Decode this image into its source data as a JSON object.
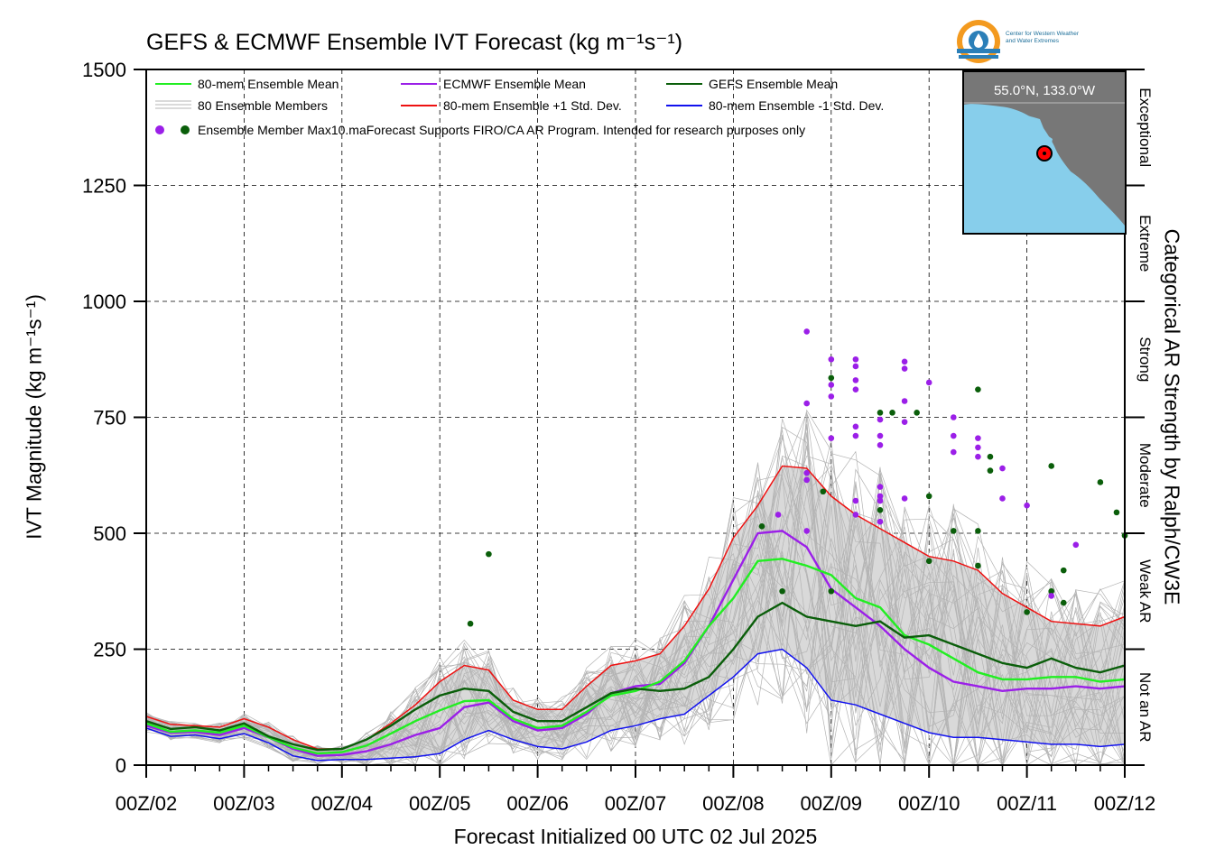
{
  "title": "GEFS & ECMWF Ensemble IVT Forecast (kg m⁻¹s⁻¹)",
  "ylabel": "IVT Magnitude (kg m⁻¹s⁻¹)",
  "xlabel": "Forecast Initialized 00 UTC 02 Jul 2025",
  "right_label": "Categorical AR Strength by Ralph/CW3E",
  "logo": {
    "text_line1": "Center for Western Weather",
    "text_line2": "and Water Extremes"
  },
  "inset_map": {
    "label": "55.0°N, 133.0°W",
    "land_color": "#777777",
    "ocean_color": "#87ceeb",
    "marker_color": "#ff0000"
  },
  "legend": {
    "mean80": "80-mem Ensemble Mean",
    "members": "80 Ensemble Members",
    "ecmwf_mean": "ECMWF Ensemble Mean",
    "plus_std": "80-mem Ensemble +1 Std. Dev.",
    "gefs_mean": "GEFS Ensemble Mean",
    "minus_std": "80-mem Ensemble -1 Std. Dev.",
    "max_label": "Ensemble Member Max",
    "note": "10.maForecast Supports FIRO/CA AR Program. Intended for research purposes only"
  },
  "colors": {
    "mean80": "#22ee22",
    "ecmwf": "#9b1fe8",
    "gefs": "#0a5e0a",
    "plus_std": "#ee1111",
    "minus_std": "#1111ee",
    "members": "#b4b4b4",
    "fill": "#d9d9d9"
  },
  "chart_data": {
    "type": "line",
    "ylim": [
      0,
      1500
    ],
    "yticks": [
      0,
      250,
      500,
      750,
      1000,
      1250,
      1500
    ],
    "xlim": [
      0,
      240
    ],
    "x_unit": "forecast hours from 00 UTC 02 Jul 2025",
    "xticks": [
      {
        "x": 0,
        "label": "00Z/02"
      },
      {
        "x": 24,
        "label": "00Z/03"
      },
      {
        "x": 48,
        "label": "00Z/04"
      },
      {
        "x": 72,
        "label": "00Z/05"
      },
      {
        "x": 96,
        "label": "00Z/06"
      },
      {
        "x": 120,
        "label": "00Z/07"
      },
      {
        "x": 144,
        "label": "00Z/08"
      },
      {
        "x": 168,
        "label": "00Z/09"
      },
      {
        "x": 192,
        "label": "00Z/10"
      },
      {
        "x": 216,
        "label": "00Z/11"
      },
      {
        "x": 240,
        "label": "00Z/12"
      }
    ],
    "grid": true,
    "categories_right": [
      {
        "label": "Not an AR",
        "from": 0,
        "to": 250
      },
      {
        "label": "Weak AR",
        "from": 250,
        "to": 500
      },
      {
        "label": "Moderate",
        "from": 500,
        "to": 750
      },
      {
        "label": "Strong",
        "from": 750,
        "to": 1000
      },
      {
        "label": "Extreme",
        "from": 1000,
        "to": 1250
      },
      {
        "label": "Exceptional",
        "from": 1250,
        "to": 1500
      }
    ],
    "x": [
      0,
      6,
      12,
      18,
      24,
      30,
      36,
      42,
      48,
      54,
      60,
      66,
      72,
      78,
      84,
      90,
      96,
      102,
      108,
      114,
      120,
      126,
      132,
      138,
      144,
      150,
      156,
      162,
      168,
      174,
      180,
      186,
      192,
      198,
      204,
      210,
      216,
      222,
      228,
      234,
      240
    ],
    "series": [
      {
        "name": "80-mem Ensemble +1 Std. Dev.",
        "key": "plus_std",
        "values": [
          105,
          88,
          85,
          82,
          100,
          82,
          55,
          35,
          35,
          55,
          90,
          130,
          180,
          215,
          205,
          140,
          120,
          120,
          170,
          215,
          225,
          240,
          300,
          380,
          490,
          560,
          645,
          640,
          580,
          540,
          510,
          480,
          450,
          440,
          420,
          370,
          340,
          310,
          305,
          300,
          320
        ]
      },
      {
        "name": "ECMWF Ensemble Mean",
        "key": "ecmwf",
        "values": [
          85,
          70,
          72,
          65,
          80,
          60,
          35,
          20,
          22,
          30,
          45,
          65,
          80,
          125,
          135,
          95,
          75,
          80,
          110,
          155,
          170,
          175,
          220,
          300,
          400,
          500,
          505,
          470,
          380,
          340,
          300,
          250,
          210,
          180,
          170,
          160,
          165,
          165,
          170,
          165,
          170
        ]
      },
      {
        "name": "80-mem Ensemble Mean",
        "key": "mean80",
        "values": [
          90,
          72,
          75,
          70,
          85,
          60,
          38,
          25,
          28,
          42,
          68,
          95,
          118,
          138,
          140,
          100,
          80,
          85,
          115,
          150,
          160,
          180,
          225,
          300,
          360,
          440,
          445,
          430,
          410,
          360,
          340,
          280,
          260,
          230,
          200,
          185,
          185,
          190,
          190,
          180,
          185
        ]
      },
      {
        "name": "GEFS Ensemble Mean",
        "key": "gefs",
        "values": [
          95,
          78,
          82,
          75,
          90,
          62,
          45,
          33,
          35,
          55,
          85,
          120,
          150,
          165,
          160,
          115,
          95,
          95,
          125,
          155,
          165,
          160,
          165,
          190,
          250,
          320,
          350,
          320,
          310,
          300,
          310,
          275,
          280,
          260,
          240,
          220,
          210,
          230,
          210,
          200,
          215
        ]
      },
      {
        "name": "80-mem Ensemble -1 Std. Dev.",
        "key": "minus_std",
        "values": [
          80,
          62,
          65,
          57,
          68,
          48,
          20,
          10,
          12,
          12,
          15,
          18,
          25,
          55,
          75,
          55,
          40,
          35,
          50,
          75,
          85,
          100,
          110,
          150,
          190,
          240,
          250,
          210,
          140,
          130,
          110,
          90,
          70,
          60,
          60,
          55,
          50,
          45,
          45,
          40,
          45
        ]
      }
    ],
    "members_band": {
      "lower_key": "minus_std",
      "upper_key": "plus_std"
    },
    "member_max_points": [
      {
        "x": 79.5,
        "y": 305,
        "model": "GEFS"
      },
      {
        "x": 84,
        "y": 455,
        "model": "GEFS"
      },
      {
        "x": 151,
        "y": 515,
        "model": "GEFS"
      },
      {
        "x": 155,
        "y": 540,
        "model": "ECMWF"
      },
      {
        "x": 156,
        "y": 375,
        "model": "GEFS"
      },
      {
        "x": 162,
        "y": 935,
        "model": "ECMWF"
      },
      {
        "x": 162,
        "y": 780,
        "model": "ECMWF"
      },
      {
        "x": 162,
        "y": 630,
        "model": "ECMWF"
      },
      {
        "x": 162,
        "y": 615,
        "model": "ECMWF"
      },
      {
        "x": 162,
        "y": 505,
        "model": "ECMWF"
      },
      {
        "x": 166,
        "y": 590,
        "model": "GEFS"
      },
      {
        "x": 168,
        "y": 875,
        "model": "ECMWF"
      },
      {
        "x": 168,
        "y": 835,
        "model": "GEFS"
      },
      {
        "x": 168,
        "y": 820,
        "model": "ECMWF"
      },
      {
        "x": 168,
        "y": 795,
        "model": "ECMWF"
      },
      {
        "x": 168,
        "y": 705,
        "model": "ECMWF"
      },
      {
        "x": 168,
        "y": 375,
        "model": "GEFS"
      },
      {
        "x": 174,
        "y": 875,
        "model": "ECMWF"
      },
      {
        "x": 174,
        "y": 860,
        "model": "ECMWF"
      },
      {
        "x": 174,
        "y": 830,
        "model": "ECMWF"
      },
      {
        "x": 174,
        "y": 810,
        "model": "ECMWF"
      },
      {
        "x": 174,
        "y": 730,
        "model": "ECMWF"
      },
      {
        "x": 174,
        "y": 710,
        "model": "ECMWF"
      },
      {
        "x": 174,
        "y": 570,
        "model": "ECMWF"
      },
      {
        "x": 174,
        "y": 540,
        "model": "ECMWF"
      },
      {
        "x": 180,
        "y": 760,
        "model": "GEFS"
      },
      {
        "x": 180,
        "y": 745,
        "model": "ECMWF"
      },
      {
        "x": 180,
        "y": 710,
        "model": "ECMWF"
      },
      {
        "x": 180,
        "y": 690,
        "model": "ECMWF"
      },
      {
        "x": 180,
        "y": 600,
        "model": "ECMWF"
      },
      {
        "x": 180,
        "y": 580,
        "model": "ECMWF"
      },
      {
        "x": 180,
        "y": 570,
        "model": "ECMWF"
      },
      {
        "x": 180,
        "y": 550,
        "model": "GEFS"
      },
      {
        "x": 180,
        "y": 525,
        "model": "ECMWF"
      },
      {
        "x": 183,
        "y": 760,
        "model": "GEFS"
      },
      {
        "x": 186,
        "y": 870,
        "model": "ECMWF"
      },
      {
        "x": 186,
        "y": 855,
        "model": "ECMWF"
      },
      {
        "x": 186,
        "y": 785,
        "model": "ECMWF"
      },
      {
        "x": 186,
        "y": 740,
        "model": "ECMWF"
      },
      {
        "x": 186,
        "y": 575,
        "model": "ECMWF"
      },
      {
        "x": 189,
        "y": 760,
        "model": "GEFS"
      },
      {
        "x": 192,
        "y": 825,
        "model": "ECMWF"
      },
      {
        "x": 192,
        "y": 580,
        "model": "GEFS"
      },
      {
        "x": 192,
        "y": 440,
        "model": "GEFS"
      },
      {
        "x": 198,
        "y": 750,
        "model": "ECMWF"
      },
      {
        "x": 198,
        "y": 710,
        "model": "ECMWF"
      },
      {
        "x": 198,
        "y": 675,
        "model": "ECMWF"
      },
      {
        "x": 198,
        "y": 505,
        "model": "GEFS"
      },
      {
        "x": 204,
        "y": 810,
        "model": "GEFS"
      },
      {
        "x": 204,
        "y": 705,
        "model": "ECMWF"
      },
      {
        "x": 204,
        "y": 685,
        "model": "ECMWF"
      },
      {
        "x": 204,
        "y": 665,
        "model": "ECMWF"
      },
      {
        "x": 204,
        "y": 505,
        "model": "GEFS"
      },
      {
        "x": 204,
        "y": 430,
        "model": "GEFS"
      },
      {
        "x": 207,
        "y": 665,
        "model": "GEFS"
      },
      {
        "x": 207,
        "y": 635,
        "model": "GEFS"
      },
      {
        "x": 210,
        "y": 640,
        "model": "ECMWF"
      },
      {
        "x": 210,
        "y": 575,
        "model": "ECMWF"
      },
      {
        "x": 216,
        "y": 560,
        "model": "ECMWF"
      },
      {
        "x": 216,
        "y": 330,
        "model": "GEFS"
      },
      {
        "x": 222,
        "y": 645,
        "model": "GEFS"
      },
      {
        "x": 222,
        "y": 375,
        "model": "GEFS"
      },
      {
        "x": 222,
        "y": 365,
        "model": "ECMWF"
      },
      {
        "x": 225,
        "y": 420,
        "model": "GEFS"
      },
      {
        "x": 225,
        "y": 350,
        "model": "GEFS"
      },
      {
        "x": 228,
        "y": 475,
        "model": "ECMWF"
      },
      {
        "x": 234,
        "y": 610,
        "model": "GEFS"
      },
      {
        "x": 238,
        "y": 545,
        "model": "GEFS"
      },
      {
        "x": 240,
        "y": 495,
        "model": "GEFS"
      }
    ]
  }
}
